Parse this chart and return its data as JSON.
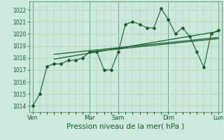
{
  "bg_color": "#cce8dc",
  "grid_color": "#99ccb3",
  "line_color": "#1a5c2a",
  "xlabel": "Pression niveau de la mer( hPa )",
  "ylim": [
    1013.5,
    1022.7
  ],
  "yticks": [
    1014,
    1015,
    1016,
    1017,
    1018,
    1019,
    1020,
    1021,
    1022
  ],
  "xtick_labels": [
    "Ven",
    "Mar",
    "Sam",
    "Dim",
    "Lun"
  ],
  "xtick_positions": [
    0,
    8,
    12,
    19,
    26
  ],
  "series1": {
    "x": [
      0,
      1,
      2,
      3,
      4,
      5,
      6,
      7,
      8,
      9,
      10,
      11,
      12,
      13,
      14,
      15,
      16,
      17,
      18,
      19,
      20,
      21,
      22,
      23,
      24,
      25,
      26
    ],
    "y": [
      1014.0,
      1015.0,
      1017.3,
      1017.5,
      1017.5,
      1017.8,
      1017.8,
      1018.0,
      1018.5,
      1018.5,
      1017.0,
      1017.0,
      1018.5,
      1020.8,
      1021.0,
      1020.8,
      1020.5,
      1020.5,
      1022.1,
      1021.2,
      1020.0,
      1020.5,
      1019.8,
      1018.5,
      1017.2,
      1020.0,
      1020.3
    ]
  },
  "trend1": {
    "x": [
      3,
      26
    ],
    "y": [
      1017.9,
      1020.2
    ]
  },
  "trend2": {
    "x": [
      3,
      26
    ],
    "y": [
      1018.3,
      1019.7
    ]
  },
  "trend3": {
    "x": [
      8,
      26
    ],
    "y": [
      1018.5,
      1019.6
    ]
  }
}
